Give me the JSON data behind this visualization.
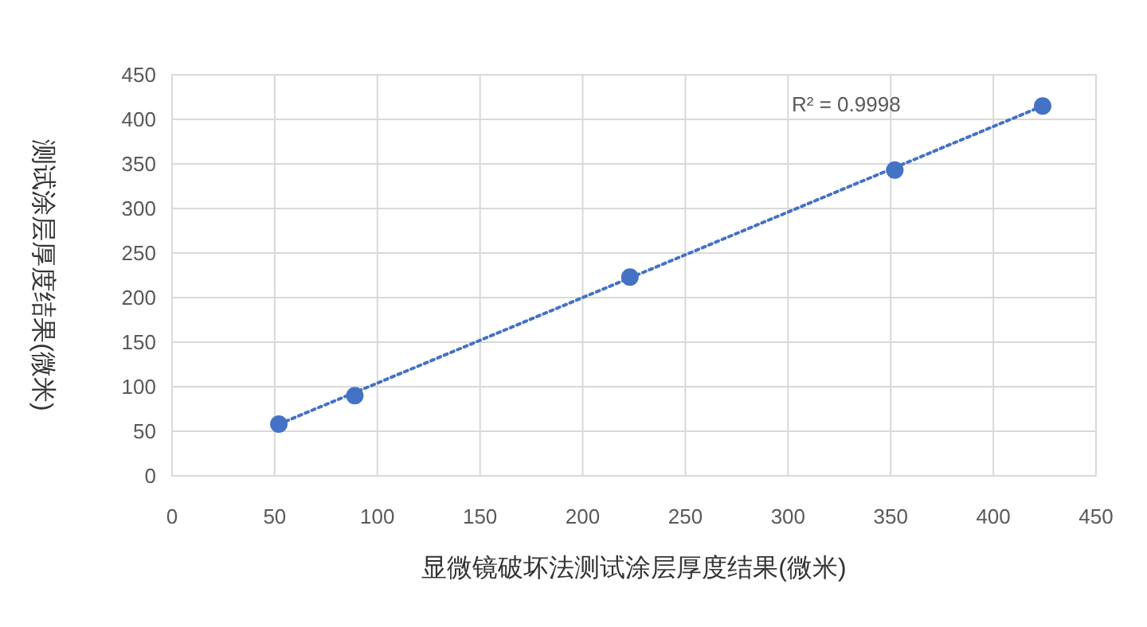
{
  "chart_data": {
    "type": "scatter",
    "xlabel": "显微镜破坏法测试涂层厚度结果(微米)",
    "ylabel": "测试涂层厚度结果(微米)",
    "xlim": [
      0,
      450
    ],
    "xticks": [
      0,
      50,
      100,
      150,
      200,
      250,
      300,
      350,
      400,
      450
    ],
    "ylim": [
      0,
      450
    ],
    "yticks": [
      0,
      50,
      100,
      150,
      200,
      250,
      300,
      350,
      400,
      450
    ],
    "grid": true,
    "annotations": [
      "R² = 0.9998"
    ],
    "series": [
      {
        "color": "#4472c4",
        "marker": "circle",
        "x": [
          52,
          89,
          223,
          352,
          424
        ],
        "values": [
          58,
          90,
          223,
          343,
          415
        ]
      },
      {
        "type": "line",
        "color": "#4472c4",
        "marker": "none",
        "line_style": "dotted",
        "x": [
          52,
          424
        ],
        "values": [
          58,
          415
        ]
      }
    ]
  }
}
